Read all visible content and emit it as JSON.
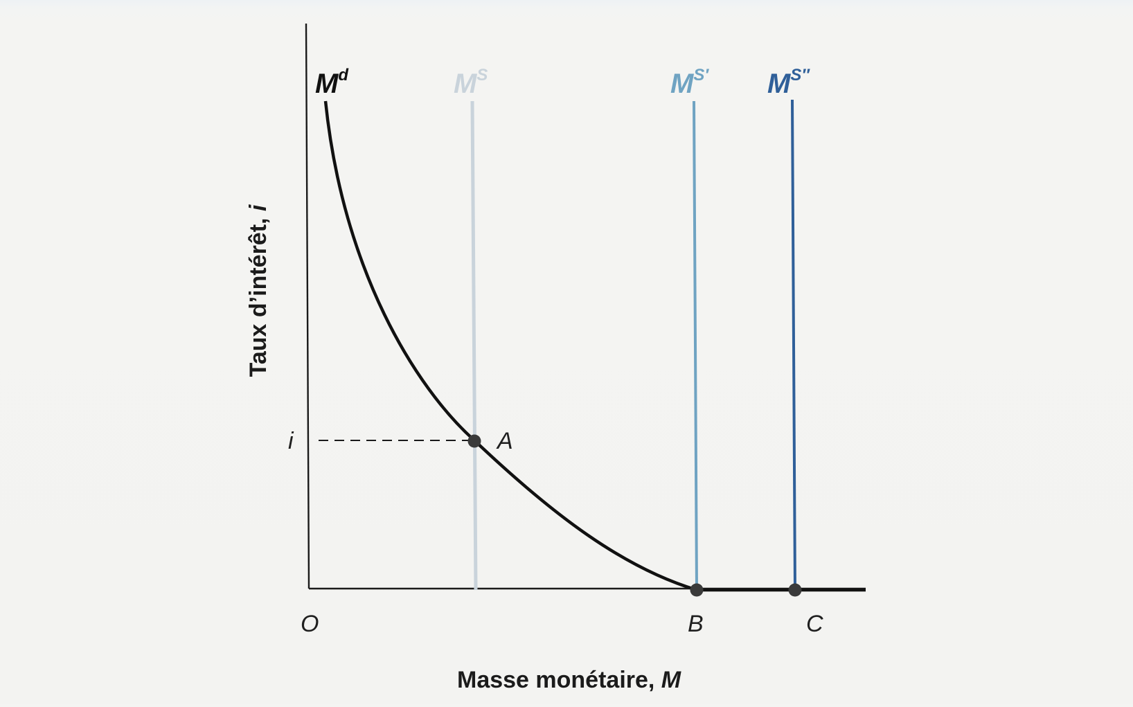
{
  "axes": {
    "x_label": "Masse monétaire, ",
    "x_label_var": "M",
    "y_label": "Taux d’intérêt, ",
    "y_label_var": "i",
    "origin_label": "O"
  },
  "curves": {
    "demand": {
      "base": "M",
      "sup": "d",
      "color": "#111111"
    },
    "supply": {
      "base": "M",
      "sup": "S",
      "color": "#c9d3db"
    },
    "supply_prime": {
      "base": "M",
      "sup": "S′",
      "color": "#6fa3c2"
    },
    "supply_double_prime": {
      "base": "M",
      "sup": "S″",
      "color": "#2f5f99"
    }
  },
  "points": {
    "A": "A",
    "B": "B",
    "C": "C",
    "i": "i"
  }
}
